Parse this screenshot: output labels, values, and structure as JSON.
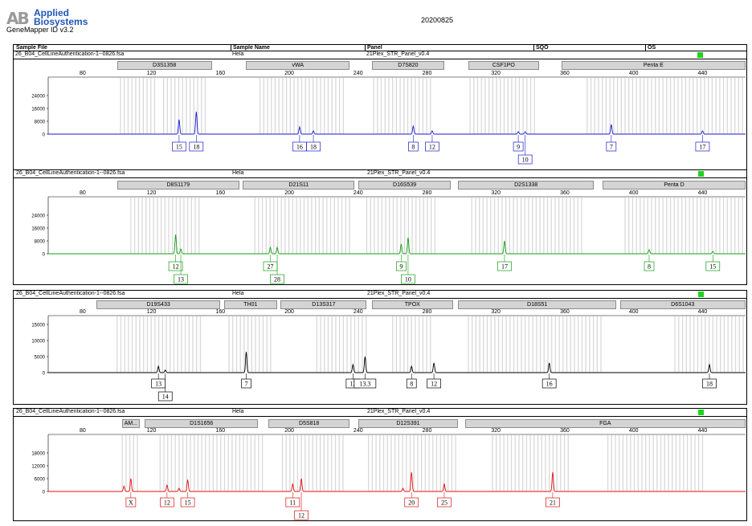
{
  "header": {
    "logo_mark": "AB",
    "brand_line1": "Applied",
    "brand_line2": "Biosystems",
    "software": "GeneMapper ID v3.2",
    "run_date": "20200825"
  },
  "table_headers": {
    "sample_file": "Sample File",
    "sample_name": "Sample Name",
    "panel": "Panel",
    "sqo": "SQO",
    "os": "OS"
  },
  "colors": {
    "blue": "#1a1ad0",
    "green": "#11a011",
    "black": "#000000",
    "red": "#e01010",
    "bin": "#d9d9d9",
    "quality_flag": "#1fd41f"
  },
  "panels": [
    {
      "sample_file": "26_B04_CellLineAuthentication-1--0826.fsa",
      "sample_name": "Hela",
      "panel": "21Plex_STR_Panel_v0.4",
      "dye": "blue",
      "markers": [
        {
          "name": "D3S1358",
          "start": 100,
          "end": 155
        },
        {
          "name": "vWA",
          "start": 175,
          "end": 235
        },
        {
          "name": "D7S820",
          "start": 248,
          "end": 290
        },
        {
          "name": "CSF1PO",
          "start": 304,
          "end": 345
        },
        {
          "name": "Penta E",
          "start": 358,
          "end": 465
        }
      ],
      "ylim": [
        0,
        32000
      ],
      "yticks": [
        0,
        8000,
        16000,
        24000
      ],
      "ytick_labels": [
        "0",
        "8000",
        "16000",
        "24000"
      ],
      "bins": [
        [
          102,
          122
        ],
        [
          127,
          152
        ],
        [
          183,
          232
        ],
        [
          249,
          282
        ],
        [
          305,
          343
        ],
        [
          373,
          465
        ]
      ],
      "peaks": [
        [
          136,
          9000
        ],
        [
          146,
          14000
        ],
        [
          206,
          4500
        ],
        [
          214,
          2000
        ],
        [
          272,
          5000
        ],
        [
          283,
          2000
        ],
        [
          333,
          1500
        ],
        [
          337,
          1500
        ],
        [
          387,
          6000
        ],
        [
          440,
          2000
        ]
      ],
      "alleles": [
        {
          "label": "15",
          "x": 136,
          "row": 0
        },
        {
          "label": "18",
          "x": 146,
          "row": 0
        },
        {
          "label": "16",
          "x": 206,
          "row": 0
        },
        {
          "label": "18",
          "x": 214,
          "row": 0
        },
        {
          "label": "8",
          "x": 272,
          "row": 0
        },
        {
          "label": "12",
          "x": 283,
          "row": 0
        },
        {
          "label": "9",
          "x": 333,
          "row": 0
        },
        {
          "label": "10",
          "x": 337,
          "row": 1
        },
        {
          "label": "7",
          "x": 387,
          "row": 0
        },
        {
          "label": "17",
          "x": 440,
          "row": 0
        }
      ]
    },
    {
      "sample_file": "26_B04_CellLineAuthentication-1--0826.fsa",
      "sample_name": "Hela",
      "panel": "21Plex_STR_Panel_v0.4",
      "dye": "green",
      "markers": [
        {
          "name": "D8S1179",
          "start": 100,
          "end": 171
        },
        {
          "name": "D21S11",
          "start": 173,
          "end": 238
        },
        {
          "name": "D16S539",
          "start": 240,
          "end": 294
        },
        {
          "name": "D2S1338",
          "start": 298,
          "end": 377
        },
        {
          "name": "Penta D",
          "start": 382,
          "end": 465
        }
      ],
      "ylim": [
        0,
        32000
      ],
      "yticks": [
        0,
        8000,
        16000,
        24000
      ],
      "ytick_labels": [
        "0",
        "8000",
        "16000",
        "24000"
      ],
      "bins": [
        [
          108,
          148
        ],
        [
          180,
          236
        ],
        [
          245,
          285
        ],
        [
          306,
          370
        ],
        [
          395,
          465
        ]
      ],
      "peaks": [
        [
          134,
          12000
        ],
        [
          137,
          3000
        ],
        [
          189,
          4000
        ],
        [
          193,
          4000
        ],
        [
          265,
          6000
        ],
        [
          269,
          10000
        ],
        [
          325,
          8000
        ],
        [
          409,
          2500
        ],
        [
          446,
          1500
        ]
      ],
      "alleles": [
        {
          "label": "12",
          "x": 134,
          "row": 0
        },
        {
          "label": "13",
          "x": 137,
          "row": 1
        },
        {
          "label": "27",
          "x": 189,
          "row": 0
        },
        {
          "label": "28",
          "x": 193,
          "row": 1
        },
        {
          "label": "9",
          "x": 265,
          "row": 0
        },
        {
          "label": "10",
          "x": 269,
          "row": 1
        },
        {
          "label": "17",
          "x": 325,
          "row": 0
        },
        {
          "label": "8",
          "x": 409,
          "row": 0
        },
        {
          "label": "15",
          "x": 446,
          "row": 0
        }
      ]
    },
    {
      "sample_file": "26_B04_CellLineAuthentication-1--0826.fsa",
      "sample_name": "Hela",
      "panel": "21Plex_STR_Panel_v0.4",
      "dye": "black",
      "markers": [
        {
          "name": "D19S433",
          "start": 88,
          "end": 160
        },
        {
          "name": "TH01",
          "start": 162,
          "end": 193
        },
        {
          "name": "D13S317",
          "start": 195,
          "end": 245
        },
        {
          "name": "TPOX",
          "start": 248,
          "end": 295
        },
        {
          "name": "D18S51",
          "start": 298,
          "end": 390
        },
        {
          "name": "D6S1043",
          "start": 392,
          "end": 465
        }
      ],
      "ylim": [
        0,
        16000
      ],
      "yticks": [
        0,
        5000,
        10000,
        15000
      ],
      "ytick_labels": [
        "0",
        "5000",
        "10000",
        "15000"
      ],
      "bins": [
        [
          100,
          150
        ],
        [
          165,
          190
        ],
        [
          216,
          245
        ],
        [
          260,
          284
        ],
        [
          304,
          382
        ],
        [
          424,
          465
        ]
      ],
      "peaks": [
        [
          124,
          2000
        ],
        [
          128,
          800
        ],
        [
          175,
          6500
        ],
        [
          237,
          2500
        ],
        [
          244,
          5000
        ],
        [
          271,
          2000
        ],
        [
          284,
          3000
        ],
        [
          351,
          3000
        ],
        [
          444,
          2500
        ]
      ],
      "alleles": [
        {
          "label": "13",
          "x": 124,
          "row": 0
        },
        {
          "label": "14",
          "x": 128,
          "row": 1
        },
        {
          "label": "7",
          "x": 175,
          "row": 0
        },
        {
          "label": "12",
          "x": 237,
          "row": 0
        },
        {
          "label": "13.3",
          "x": 244,
          "row": 0
        },
        {
          "label": "8",
          "x": 271,
          "row": 0
        },
        {
          "label": "12",
          "x": 284,
          "row": 0
        },
        {
          "label": "16",
          "x": 351,
          "row": 0
        },
        {
          "label": "18",
          "x": 444,
          "row": 0
        }
      ]
    },
    {
      "sample_file": "26_B04_CellLineAuthentication-1--0826.fsa",
      "sample_name": "Hela",
      "panel": "21Plex_STR_Panel_v0.4",
      "dye": "red",
      "markers": [
        {
          "name": "AM...",
          "start": 103,
          "end": 113
        },
        {
          "name": "D1S1656",
          "start": 116,
          "end": 182
        },
        {
          "name": "D5S818",
          "start": 188,
          "end": 235
        },
        {
          "name": "D12S391",
          "start": 240,
          "end": 298
        },
        {
          "name": "FGA",
          "start": 302,
          "end": 465
        }
      ],
      "ylim": [
        0,
        24000
      ],
      "yticks": [
        0,
        6000,
        12000,
        18000
      ],
      "ytick_labels": [
        "0",
        "6000",
        "12000",
        "18000"
      ],
      "bins": [
        [
          103,
          112
        ],
        [
          125,
          186
        ],
        [
          196,
          232
        ],
        [
          246,
          298
        ],
        [
          318,
          362
        ],
        [
          385,
          442
        ]
      ],
      "peaks": [
        [
          104,
          2500
        ],
        [
          108,
          6000
        ],
        [
          129,
          3000
        ],
        [
          136,
          1500
        ],
        [
          141,
          5500
        ],
        [
          202,
          3500
        ],
        [
          207,
          6000
        ],
        [
          266,
          1500
        ],
        [
          271,
          9000
        ],
        [
          290,
          3500
        ],
        [
          353,
          9000
        ]
      ],
      "alleles": [
        {
          "label": "X",
          "x": 108,
          "row": 0
        },
        {
          "label": "12",
          "x": 129,
          "row": 0
        },
        {
          "label": "15",
          "x": 141,
          "row": 0
        },
        {
          "label": "11",
          "x": 202,
          "row": 0
        },
        {
          "label": "12",
          "x": 207,
          "row": 1
        },
        {
          "label": "20",
          "x": 271,
          "row": 0
        },
        {
          "label": "25",
          "x": 290,
          "row": 0
        },
        {
          "label": "21",
          "x": 353,
          "row": 0
        }
      ]
    }
  ],
  "chart_data": {
    "type": "line",
    "title": "",
    "xlabel": "",
    "ylabel": "",
    "xlim": [
      60,
      465
    ],
    "xticks": [
      80,
      120,
      160,
      200,
      240,
      280,
      320,
      360,
      400,
      440
    ],
    "xtick_labels": [
      "80",
      "120",
      "160",
      "200",
      "240",
      "280",
      "320",
      "360",
      "400",
      "440"
    ],
    "grid": false,
    "series_source": "panels[].peaks as [size_bp, height_rfu]"
  }
}
